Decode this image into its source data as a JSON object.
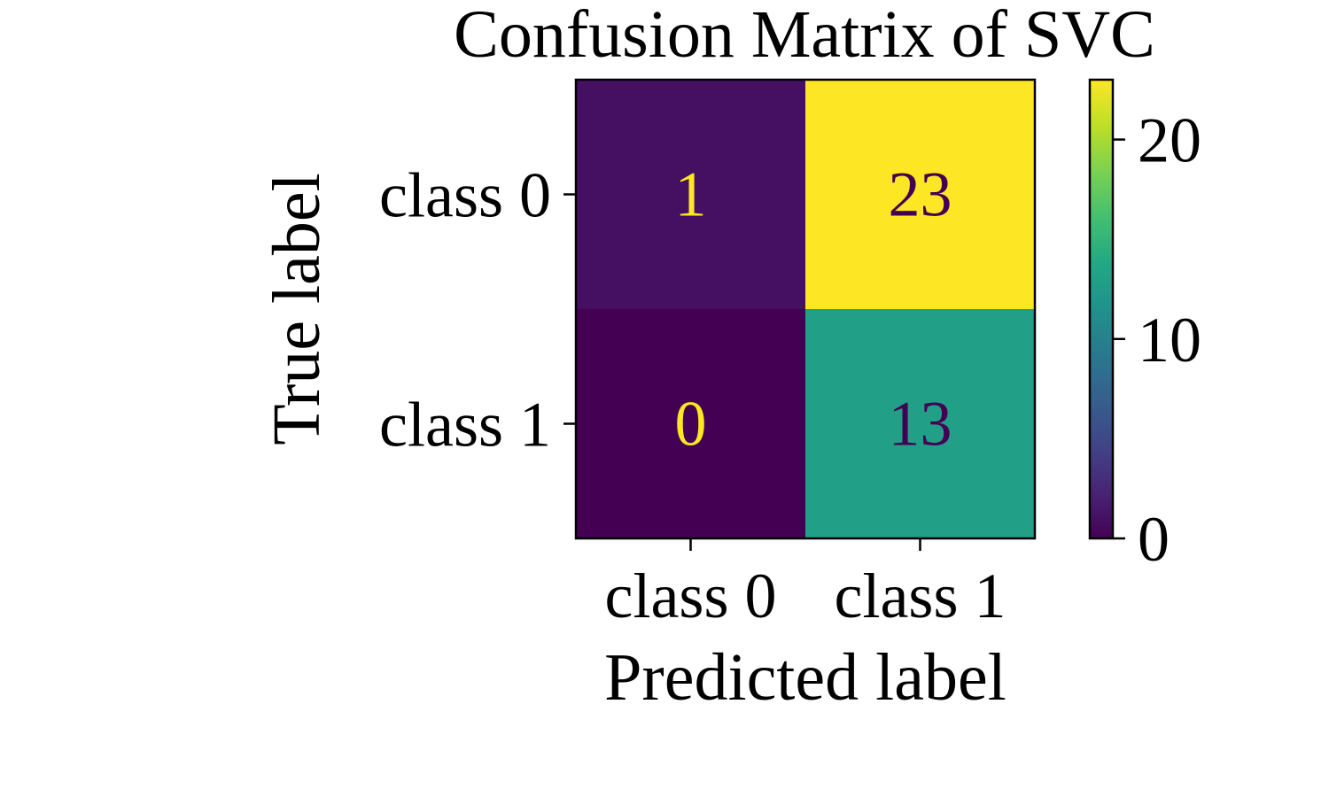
{
  "chart_data": {
    "type": "heatmap",
    "title": "Confusion Matrix of SVC",
    "xlabel": "Predicted label",
    "ylabel": "True label",
    "x_categories": [
      "class 0",
      "class 1"
    ],
    "y_categories": [
      "class 0",
      "class 1"
    ],
    "values": [
      [
        1,
        23
      ],
      [
        0,
        13
      ]
    ],
    "colormap": "viridis",
    "colorbar": {
      "range": [
        0,
        23
      ],
      "ticks": [
        0,
        10,
        20
      ]
    },
    "colors": {
      "low": "#440154",
      "high": "#fde725",
      "mid": "#21a386"
    }
  }
}
